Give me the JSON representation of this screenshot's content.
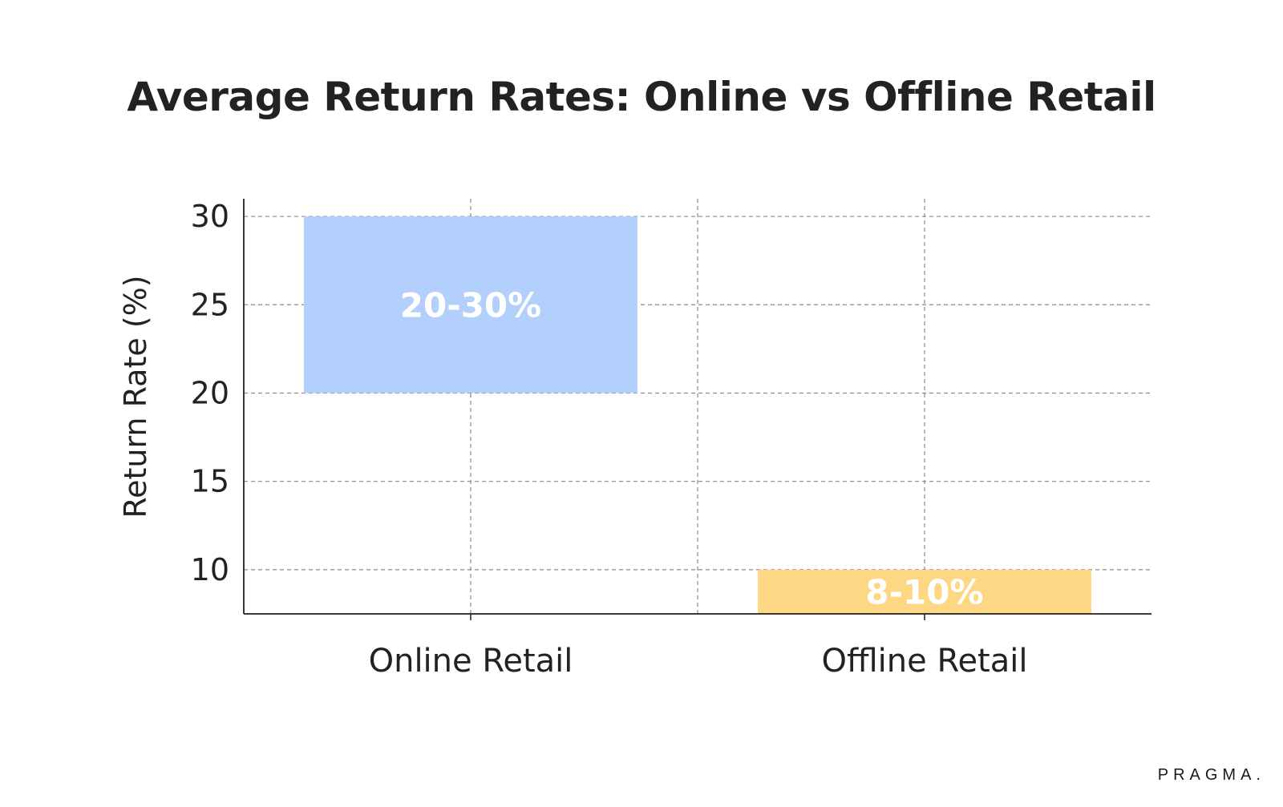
{
  "chart_data": {
    "type": "bar",
    "title": "Average Return Rates: Online vs Offline Retail",
    "xlabel": "",
    "ylabel": "Return Rate (%)",
    "ylim": [
      7.5,
      31
    ],
    "yticks": [
      10,
      15,
      20,
      25,
      30
    ],
    "categories": [
      "Online Retail",
      "Offline Retail"
    ],
    "bars": [
      {
        "category": "Online Retail",
        "low": 20,
        "high": 30,
        "label": "20-30%",
        "color": "#b3cffc"
      },
      {
        "category": "Offline Retail",
        "low": 7.5,
        "high": 10,
        "label": "8-10%",
        "color": "#fdd784"
      }
    ],
    "grid": true,
    "legend": "none"
  },
  "branding": {
    "logo_text": "PRAGMA."
  }
}
